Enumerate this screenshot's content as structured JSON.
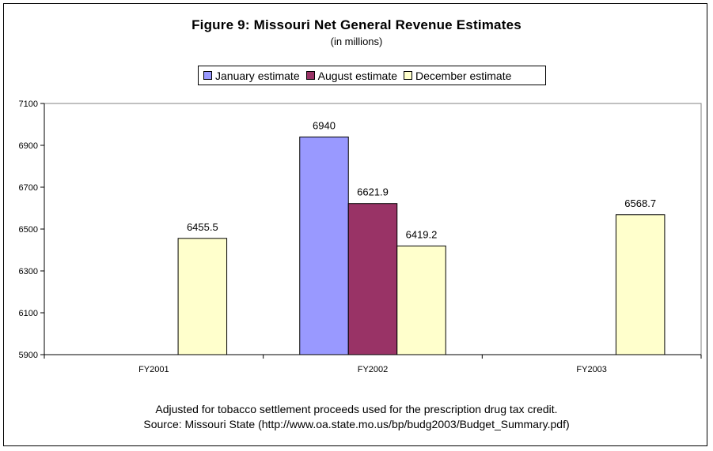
{
  "chart_data": {
    "type": "bar",
    "title": "Figure 9: Missouri Net General Revenue Estimates",
    "subtitle": "(in millions)",
    "categories": [
      "FY2001",
      "FY2002",
      "FY2003"
    ],
    "series": [
      {
        "name": "January estimate",
        "color": "#9999ff",
        "values": [
          null,
          6940,
          null
        ],
        "labels": [
          null,
          "6940",
          null
        ]
      },
      {
        "name": "August estimate",
        "color": "#993366",
        "values": [
          null,
          6621.9,
          null
        ],
        "labels": [
          null,
          "6621.9",
          null
        ]
      },
      {
        "name": "December estimate",
        "color": "#ffffcc",
        "values": [
          6455.5,
          6419.2,
          6568.7
        ],
        "labels": [
          "6455.5",
          "6419.2",
          "6568.7"
        ]
      }
    ],
    "ylim": [
      5900,
      7100
    ],
    "yticks": [
      5900,
      6100,
      6300,
      6500,
      6700,
      6900,
      7100
    ],
    "grid": false,
    "legend": "top"
  },
  "footnotes": {
    "line1": "Adjusted for tobacco settlement proceeds used for the prescription drug tax credit.",
    "line2": "Source: Missouri State (http://www.oa.state.mo.us/bp/budg2003/Budget_Summary.pdf)"
  }
}
